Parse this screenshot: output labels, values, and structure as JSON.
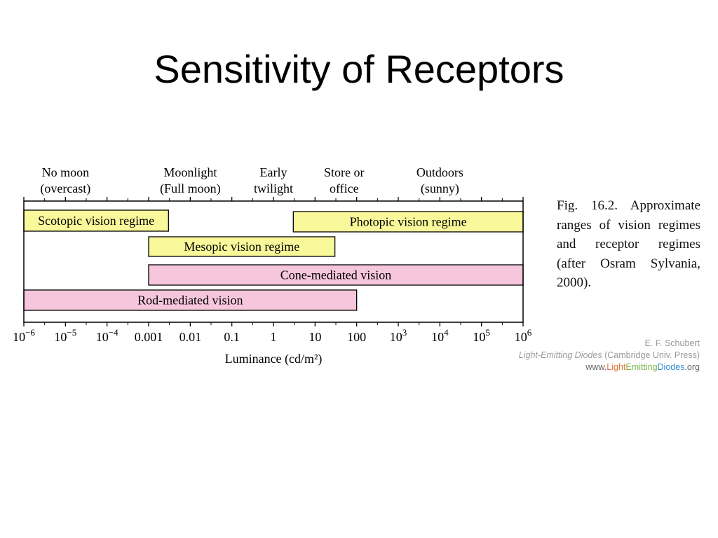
{
  "slide": {
    "title": "Sensitivity of Receptors"
  },
  "caption": "Fig. 16.2. Approximate ranges of vision regimes and receptor regimes (after Osram Sylvania, 2000).",
  "credit": {
    "author": "E. F. Schubert",
    "book_title": "Light-Emitting Diodes",
    "book_publisher": "(Cambridge Univ. Press)",
    "url_prefix": "www.",
    "url_part1": "Light",
    "url_part2": "Emitting",
    "url_part3": "Diodes",
    "url_suffix": ".org"
  },
  "colors": {
    "vision_regime": "#f9f89a",
    "receptor_regime": "#f6c6dc",
    "axis": "#000000"
  },
  "chart_data": {
    "type": "bar",
    "orientation": "horizontal-range",
    "scale": "log10",
    "xlabel": "Luminance (cd/m²)",
    "xlim": [
      1e-06,
      1000000.0
    ],
    "ticks": [
      {
        "value": 1e-06,
        "base": "10",
        "exp": "−6"
      },
      {
        "value": 1e-05,
        "base": "10",
        "exp": "−5"
      },
      {
        "value": 0.0001,
        "base": "10",
        "exp": "−4"
      },
      {
        "value": 0.001,
        "base": "0.001",
        "exp": ""
      },
      {
        "value": 0.01,
        "base": "0.01",
        "exp": ""
      },
      {
        "value": 0.1,
        "base": "0.1",
        "exp": ""
      },
      {
        "value": 1,
        "base": "1",
        "exp": ""
      },
      {
        "value": 10,
        "base": "10",
        "exp": ""
      },
      {
        "value": 100,
        "base": "100",
        "exp": ""
      },
      {
        "value": 1000,
        "base": "10",
        "exp": "3"
      },
      {
        "value": 10000,
        "base": "10",
        "exp": "4"
      },
      {
        "value": 100000,
        "base": "10",
        "exp": "5"
      },
      {
        "value": 1000000,
        "base": "10",
        "exp": "6"
      }
    ],
    "top_labels": [
      {
        "value": 1e-05,
        "lines": [
          "No moon",
          "(overcast)"
        ]
      },
      {
        "value": 0.01,
        "lines": [
          "Moonlight",
          "(Full moon)"
        ]
      },
      {
        "value": 1,
        "lines": [
          "Early",
          "twilight"
        ]
      },
      {
        "value": 50,
        "lines": [
          "Store or",
          "office"
        ]
      },
      {
        "value": 10000,
        "lines": [
          "Outdoors",
          "(sunny)"
        ]
      }
    ],
    "bars": [
      {
        "name": "Scotopic vision regime",
        "start": 1e-06,
        "end": 0.003,
        "kind": "vision_regime"
      },
      {
        "name": "Photopic vision regime",
        "start": 3,
        "end": 1000000,
        "kind": "vision_regime"
      },
      {
        "name": "Mesopic vision regime",
        "start": 0.001,
        "end": 30,
        "kind": "vision_regime"
      },
      {
        "name": "Cone-mediated vision",
        "start": 0.001,
        "end": 1000000,
        "kind": "receptor_regime"
      },
      {
        "name": "Rod-mediated vision",
        "start": 1e-06,
        "end": 100,
        "kind": "receptor_regime"
      }
    ]
  }
}
